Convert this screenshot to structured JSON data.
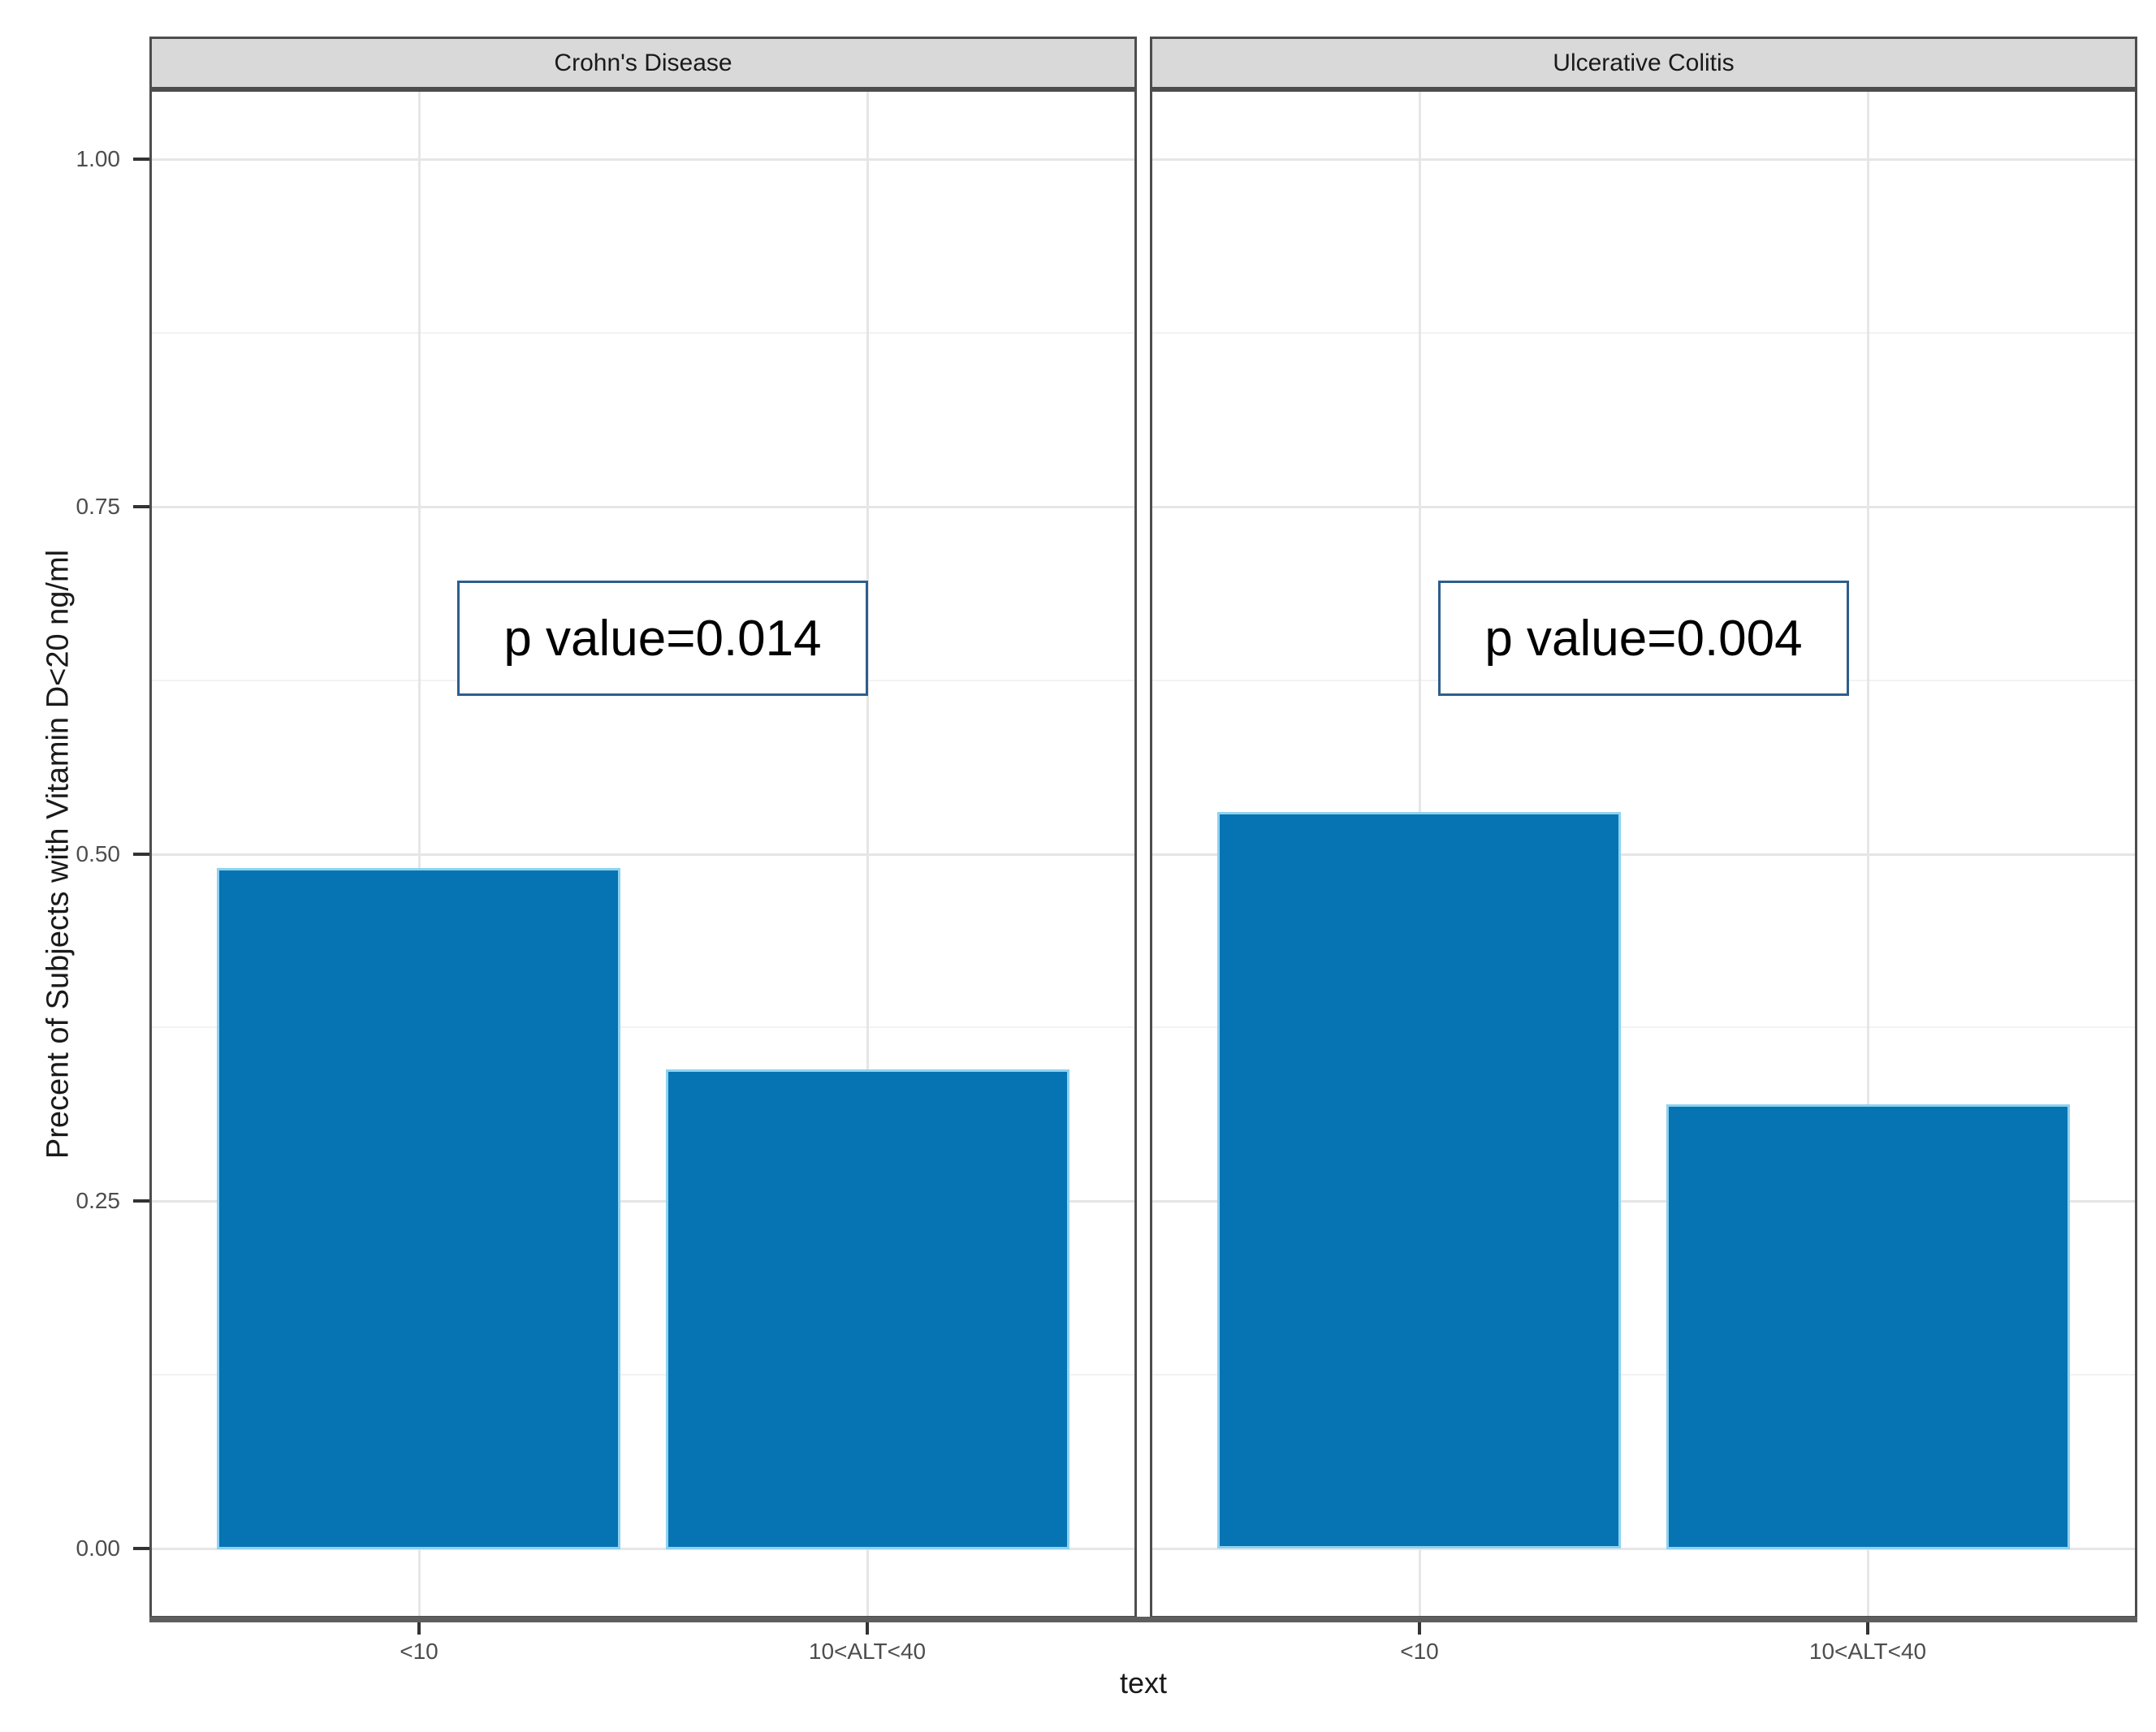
{
  "chart_data": {
    "type": "bar",
    "facets": [
      {
        "title": "Crohn's Disease",
        "p_label": "p value=0.014",
        "p_x_frac": 0.52,
        "p_y": 0.655,
        "values": [
          0.49,
          0.345
        ]
      },
      {
        "title": "Ulcerative Colitis",
        "p_label": "p value=0.004",
        "p_x_frac": 0.5,
        "p_y": 0.655,
        "values": [
          0.53,
          0.32
        ]
      }
    ],
    "categories": [
      "<10",
      "10<ALT<40"
    ],
    "xlabel": "text",
    "ylabel": "Precent of Subjects with Vitamin D<20 ng/ml",
    "y_ticks": [
      {
        "v": 1.0,
        "label": "1.00"
      },
      {
        "v": 0.75,
        "label": "0.75"
      },
      {
        "v": 0.5,
        "label": "0.50"
      },
      {
        "v": 0.25,
        "label": "0.25"
      },
      {
        "v": 0.0,
        "label": "0.00"
      }
    ],
    "y_minor": [
      0.875,
      0.625,
      0.375,
      0.125
    ],
    "ylim": [
      -0.05,
      1.05
    ],
    "grid": true,
    "legend_position": "none"
  },
  "colors": {
    "bar_fill": "#0673b2",
    "bar_edge": "#8ed2f0",
    "strip_fill": "#d9d9d9",
    "strip_text": "#1a1a1a",
    "panel_border": "#4d4d4d",
    "grid_major": "#e6e6e6",
    "grid_minor": "#f2f2f2",
    "tick_mark": "#333333",
    "tick_text": "#4d4d4d",
    "axis_line": "#5e5e5e",
    "annotation_border": "#2d5e8d",
    "annotation_text": "#000000",
    "axis_title_text": "#1a1a1a"
  }
}
